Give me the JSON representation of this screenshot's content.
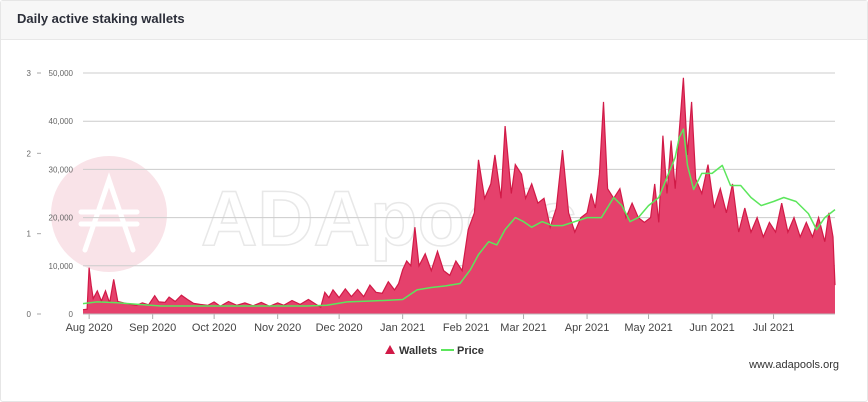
{
  "header": {
    "title": "Daily active staking wallets"
  },
  "footer": {
    "site": "www.adapools.org"
  },
  "watermark": {
    "text": "ADApools",
    "icon": "cardano-ada-icon"
  },
  "colors": {
    "wallets_fill": "#e5416c",
    "wallets_line": "#d11a47",
    "price_line": "#5ce65c",
    "grid": "#cccccc",
    "axis_text": "#666666",
    "watermark_circle": "#f9e3e8",
    "watermark_text": "#e8e8e8"
  },
  "chart_data": {
    "type": "area",
    "title": "",
    "xlabel": "",
    "ylabel": "",
    "legend": {
      "placement": "bottom-center",
      "items": [
        "Wallets",
        "Price"
      ]
    },
    "grid": true,
    "x_range": [
      "2020-07-29",
      "2021-07-31"
    ],
    "x_ticks": [
      {
        "date": "2020-08-01",
        "label": "Aug 2020"
      },
      {
        "date": "2020-09-01",
        "label": "Sep 2020"
      },
      {
        "date": "2020-10-01",
        "label": "Oct 2020"
      },
      {
        "date": "2020-11-01",
        "label": "Nov 2020"
      },
      {
        "date": "2020-12-01",
        "label": "Dec 2020"
      },
      {
        "date": "2021-01-01",
        "label": "Jan 2021"
      },
      {
        "date": "2021-02-01",
        "label": "Feb 2021"
      },
      {
        "date": "2021-03-01",
        "label": "Mar 2021"
      },
      {
        "date": "2021-04-01",
        "label": "Apr 2021"
      },
      {
        "date": "2021-05-01",
        "label": "May 2021"
      },
      {
        "date": "2021-06-01",
        "label": "Jun 2021"
      },
      {
        "date": "2021-07-01",
        "label": "Jul 2021"
      }
    ],
    "y_left": {
      "range": [
        0,
        3
      ],
      "ticks": [
        0,
        1,
        2,
        3
      ],
      "tick_labels": [
        "0",
        "1",
        "2",
        "3"
      ]
    },
    "y_right": {
      "range": [
        0,
        50000
      ],
      "ticks": [
        0,
        10000,
        20000,
        30000,
        40000,
        50000
      ],
      "tick_labels": [
        "0",
        "10,000",
        "20,000",
        "30,000",
        "40,000",
        "50,000"
      ]
    },
    "series": [
      {
        "name": "Wallets",
        "type": "area",
        "axis": "right",
        "points": [
          [
            "2020-07-29",
            900
          ],
          [
            "2020-07-31",
            1000
          ],
          [
            "2020-08-01",
            9600
          ],
          [
            "2020-08-02",
            6000
          ],
          [
            "2020-08-03",
            3200
          ],
          [
            "2020-08-05",
            4800
          ],
          [
            "2020-08-07",
            2700
          ],
          [
            "2020-08-09",
            4800
          ],
          [
            "2020-08-11",
            2300
          ],
          [
            "2020-08-13",
            7200
          ],
          [
            "2020-08-15",
            2600
          ],
          [
            "2020-08-18",
            2300
          ],
          [
            "2020-08-21",
            2000
          ],
          [
            "2020-08-24",
            1800
          ],
          [
            "2020-08-27",
            2300
          ],
          [
            "2020-08-30",
            1900
          ],
          [
            "2020-09-02",
            3800
          ],
          [
            "2020-09-04",
            2500
          ],
          [
            "2020-09-07",
            2400
          ],
          [
            "2020-09-09",
            3500
          ],
          [
            "2020-09-12",
            2600
          ],
          [
            "2020-09-15",
            3900
          ],
          [
            "2020-09-18",
            3000
          ],
          [
            "2020-09-21",
            2200
          ],
          [
            "2020-09-24",
            2000
          ],
          [
            "2020-09-28",
            1800
          ],
          [
            "2020-10-01",
            2500
          ],
          [
            "2020-10-04",
            1600
          ],
          [
            "2020-10-08",
            2600
          ],
          [
            "2020-10-12",
            1800
          ],
          [
            "2020-10-16",
            2300
          ],
          [
            "2020-10-20",
            1700
          ],
          [
            "2020-10-24",
            2400
          ],
          [
            "2020-10-28",
            1600
          ],
          [
            "2020-11-01",
            2300
          ],
          [
            "2020-11-04",
            1800
          ],
          [
            "2020-11-08",
            2800
          ],
          [
            "2020-11-12",
            2000
          ],
          [
            "2020-11-16",
            3000
          ],
          [
            "2020-11-19",
            2200
          ],
          [
            "2020-11-22",
            1400
          ],
          [
            "2020-11-24",
            4500
          ],
          [
            "2020-11-26",
            3400
          ],
          [
            "2020-11-28",
            5000
          ],
          [
            "2020-12-01",
            3400
          ],
          [
            "2020-12-04",
            5200
          ],
          [
            "2020-12-07",
            3600
          ],
          [
            "2020-12-10",
            5100
          ],
          [
            "2020-12-13",
            3600
          ],
          [
            "2020-12-16",
            6000
          ],
          [
            "2020-12-19",
            4500
          ],
          [
            "2020-12-22",
            4300
          ],
          [
            "2020-12-25",
            6700
          ],
          [
            "2020-12-28",
            5000
          ],
          [
            "2020-12-30",
            6300
          ],
          [
            "2021-01-01",
            9200
          ],
          [
            "2021-01-03",
            11000
          ],
          [
            "2021-01-05",
            10000
          ],
          [
            "2021-01-07",
            18000
          ],
          [
            "2021-01-09",
            10000
          ],
          [
            "2021-01-12",
            12500
          ],
          [
            "2021-01-15",
            9000
          ],
          [
            "2021-01-18",
            13000
          ],
          [
            "2021-01-21",
            9000
          ],
          [
            "2021-01-24",
            8000
          ],
          [
            "2021-01-27",
            11000
          ],
          [
            "2021-01-30",
            9000
          ],
          [
            "2021-02-02",
            17500
          ],
          [
            "2021-02-05",
            21000
          ],
          [
            "2021-02-07",
            32000
          ],
          [
            "2021-02-10",
            24000
          ],
          [
            "2021-02-13",
            27000
          ],
          [
            "2021-02-15",
            33000
          ],
          [
            "2021-02-18",
            24000
          ],
          [
            "2021-02-20",
            39000
          ],
          [
            "2021-02-23",
            25000
          ],
          [
            "2021-02-25",
            31000
          ],
          [
            "2021-02-28",
            29000
          ],
          [
            "2021-03-02",
            24000
          ],
          [
            "2021-03-05",
            27000
          ],
          [
            "2021-03-08",
            23000
          ],
          [
            "2021-03-11",
            24000
          ],
          [
            "2021-03-14",
            18000
          ],
          [
            "2021-03-17",
            22000
          ],
          [
            "2021-03-20",
            34000
          ],
          [
            "2021-03-23",
            21000
          ],
          [
            "2021-03-26",
            17000
          ],
          [
            "2021-03-29",
            20000
          ],
          [
            "2021-04-01",
            21000
          ],
          [
            "2021-04-03",
            25000
          ],
          [
            "2021-04-05",
            22000
          ],
          [
            "2021-04-07",
            29000
          ],
          [
            "2021-04-09",
            44000
          ],
          [
            "2021-04-11",
            26000
          ],
          [
            "2021-04-14",
            24000
          ],
          [
            "2021-04-17",
            26000
          ],
          [
            "2021-04-20",
            20000
          ],
          [
            "2021-04-23",
            23000
          ],
          [
            "2021-04-26",
            20000
          ],
          [
            "2021-04-29",
            19000
          ],
          [
            "2021-05-02",
            20000
          ],
          [
            "2021-05-04",
            27000
          ],
          [
            "2021-05-06",
            19000
          ],
          [
            "2021-05-08",
            37000
          ],
          [
            "2021-05-10",
            25000
          ],
          [
            "2021-05-12",
            36000
          ],
          [
            "2021-05-14",
            26000
          ],
          [
            "2021-05-16",
            38000
          ],
          [
            "2021-05-18",
            49000
          ],
          [
            "2021-05-20",
            33000
          ],
          [
            "2021-05-22",
            44000
          ],
          [
            "2021-05-24",
            28000
          ],
          [
            "2021-05-27",
            25000
          ],
          [
            "2021-05-30",
            31000
          ],
          [
            "2021-06-02",
            22000
          ],
          [
            "2021-06-05",
            26000
          ],
          [
            "2021-06-08",
            21000
          ],
          [
            "2021-06-11",
            27000
          ],
          [
            "2021-06-14",
            17000
          ],
          [
            "2021-06-17",
            22000
          ],
          [
            "2021-06-20",
            17000
          ],
          [
            "2021-06-23",
            20000
          ],
          [
            "2021-06-26",
            16000
          ],
          [
            "2021-06-29",
            19000
          ],
          [
            "2021-07-02",
            17000
          ],
          [
            "2021-07-05",
            23000
          ],
          [
            "2021-07-08",
            17000
          ],
          [
            "2021-07-11",
            20000
          ],
          [
            "2021-07-14",
            16000
          ],
          [
            "2021-07-17",
            19000
          ],
          [
            "2021-07-20",
            16000
          ],
          [
            "2021-07-23",
            20000
          ],
          [
            "2021-07-26",
            15000
          ],
          [
            "2021-07-28",
            21000
          ],
          [
            "2021-07-30",
            16000
          ],
          [
            "2021-07-31",
            6000
          ]
        ]
      },
      {
        "name": "Price",
        "type": "line",
        "axis": "left",
        "points": [
          [
            "2020-07-29",
            0.13
          ],
          [
            "2020-08-05",
            0.15
          ],
          [
            "2020-08-15",
            0.14
          ],
          [
            "2020-08-25",
            0.12
          ],
          [
            "2020-09-05",
            0.1
          ],
          [
            "2020-09-15",
            0.1
          ],
          [
            "2020-09-25",
            0.1
          ],
          [
            "2020-10-05",
            0.1
          ],
          [
            "2020-10-15",
            0.1
          ],
          [
            "2020-10-25",
            0.1
          ],
          [
            "2020-11-05",
            0.1
          ],
          [
            "2020-11-15",
            0.1
          ],
          [
            "2020-11-25",
            0.11
          ],
          [
            "2020-12-05",
            0.15
          ],
          [
            "2020-12-15",
            0.16
          ],
          [
            "2020-12-25",
            0.17
          ],
          [
            "2021-01-01",
            0.18
          ],
          [
            "2021-01-08",
            0.3
          ],
          [
            "2021-01-15",
            0.33
          ],
          [
            "2021-01-22",
            0.35
          ],
          [
            "2021-01-29",
            0.38
          ],
          [
            "2021-02-03",
            0.55
          ],
          [
            "2021-02-07",
            0.74
          ],
          [
            "2021-02-12",
            0.9
          ],
          [
            "2021-02-16",
            0.86
          ],
          [
            "2021-02-20",
            1.05
          ],
          [
            "2021-02-25",
            1.2
          ],
          [
            "2021-03-01",
            1.15
          ],
          [
            "2021-03-05",
            1.08
          ],
          [
            "2021-03-10",
            1.15
          ],
          [
            "2021-03-15",
            1.1
          ],
          [
            "2021-03-20",
            1.1
          ],
          [
            "2021-03-26",
            1.15
          ],
          [
            "2021-04-01",
            1.2
          ],
          [
            "2021-04-08",
            1.2
          ],
          [
            "2021-04-14",
            1.45
          ],
          [
            "2021-04-18",
            1.35
          ],
          [
            "2021-04-22",
            1.15
          ],
          [
            "2021-04-26",
            1.2
          ],
          [
            "2021-05-01",
            1.35
          ],
          [
            "2021-05-06",
            1.45
          ],
          [
            "2021-05-10",
            1.7
          ],
          [
            "2021-05-14",
            1.95
          ],
          [
            "2021-05-16",
            2.2
          ],
          [
            "2021-05-18",
            2.3
          ],
          [
            "2021-05-20",
            1.85
          ],
          [
            "2021-05-23",
            1.55
          ],
          [
            "2021-05-27",
            1.75
          ],
          [
            "2021-06-01",
            1.75
          ],
          [
            "2021-06-06",
            1.85
          ],
          [
            "2021-06-10",
            1.6
          ],
          [
            "2021-06-15",
            1.6
          ],
          [
            "2021-06-20",
            1.45
          ],
          [
            "2021-06-25",
            1.35
          ],
          [
            "2021-07-01",
            1.4
          ],
          [
            "2021-07-06",
            1.45
          ],
          [
            "2021-07-12",
            1.4
          ],
          [
            "2021-07-18",
            1.25
          ],
          [
            "2021-07-22",
            1.05
          ],
          [
            "2021-07-26",
            1.2
          ],
          [
            "2021-07-31",
            1.3
          ]
        ]
      }
    ]
  }
}
